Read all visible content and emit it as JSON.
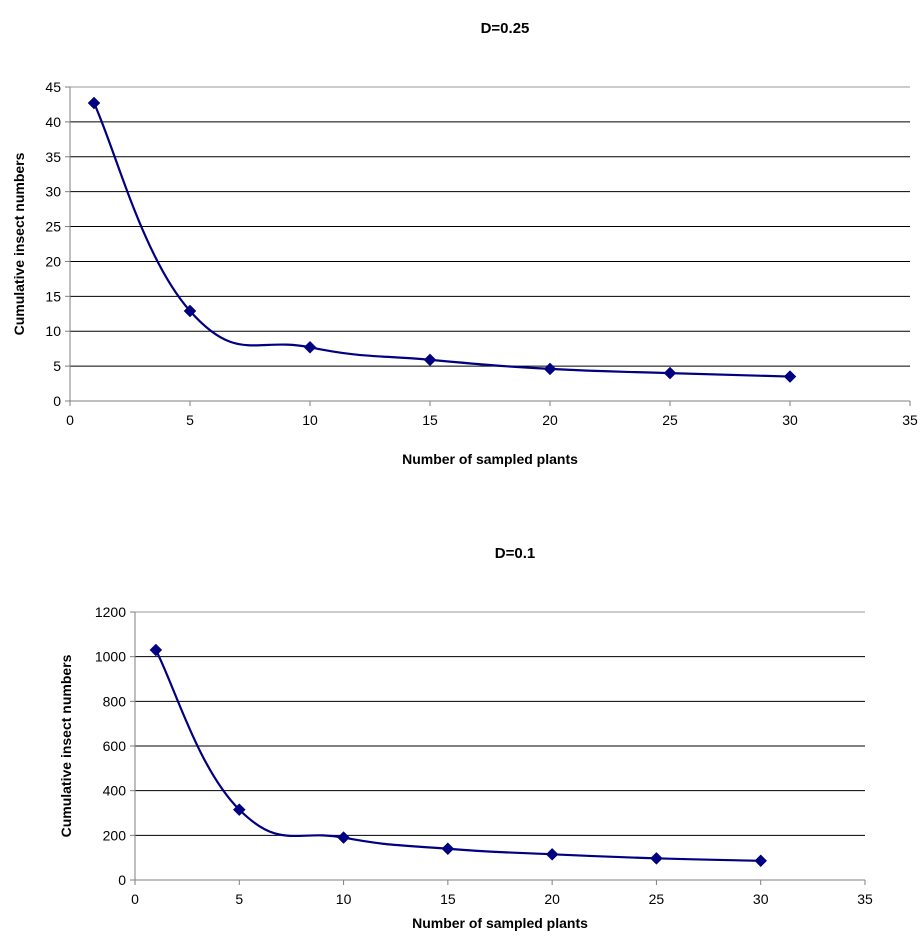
{
  "chart_data": [
    {
      "type": "line",
      "title": "D=0.25",
      "xlabel": "Number of sampled plants",
      "ylabel": "Cumulative insect numbers",
      "xlim": [
        0,
        35
      ],
      "ylim": [
        0,
        45
      ],
      "x_ticks": [
        "0",
        "5",
        "10",
        "15",
        "20",
        "25",
        "30",
        "35"
      ],
      "y_ticks": [
        "0",
        "5",
        "10",
        "15",
        "20",
        "25",
        "30",
        "35",
        "40",
        "45"
      ],
      "grid": "horizontal",
      "marker": "diamond",
      "line_color": "#000080",
      "series": [
        {
          "x": [
            1,
            5,
            10,
            15,
            20,
            25,
            30
          ],
          "values": [
            42.7,
            12.9,
            7.7,
            5.9,
            4.6,
            4.0,
            3.5
          ]
        }
      ]
    },
    {
      "type": "line",
      "title": "D=0.1",
      "xlabel": "Number of sampled plants",
      "ylabel": "Cumulative insect numbers",
      "xlim": [
        0,
        35
      ],
      "ylim": [
        0,
        1200
      ],
      "x_ticks": [
        "0",
        "5",
        "10",
        "15",
        "20",
        "25",
        "30",
        "35"
      ],
      "y_ticks": [
        "0",
        "200",
        "400",
        "600",
        "800",
        "1000",
        "1200"
      ],
      "grid": "horizontal",
      "marker": "diamond",
      "line_color": "#000080",
      "series": [
        {
          "x": [
            1,
            5,
            10,
            15,
            20,
            25,
            30
          ],
          "values": [
            1030,
            315,
            190,
            140,
            115,
            97,
            86
          ]
        }
      ]
    }
  ]
}
